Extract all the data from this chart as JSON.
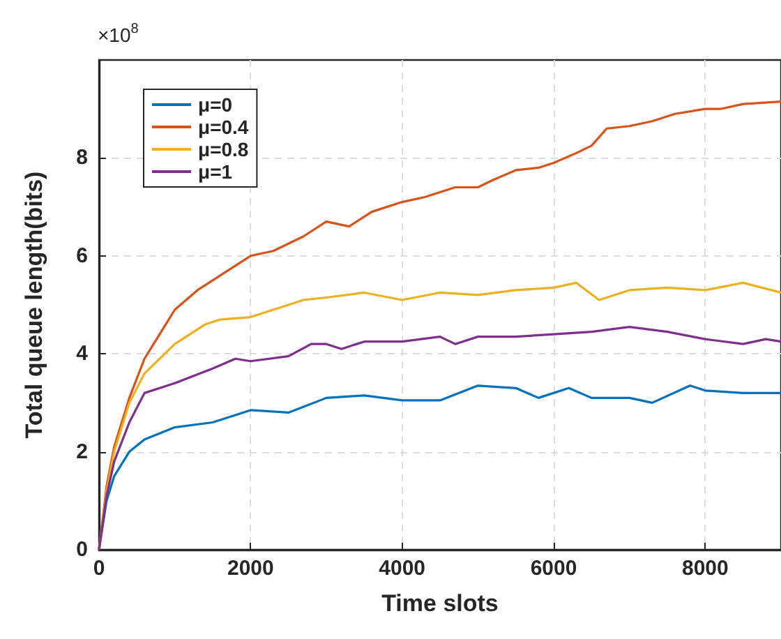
{
  "chart_data": {
    "type": "line",
    "xlabel": "Time slots",
    "ylabel": "Total queue length(bits)",
    "annotations": [
      "×10$^{8}$"
    ],
    "xlim": [
      0,
      9000
    ],
    "xticks": [
      0,
      2000,
      4000,
      6000,
      8000
    ],
    "ylim": [
      0,
      10
    ],
    "yticks": [
      0,
      2,
      4,
      6,
      8
    ],
    "grid": true,
    "legend": "top left",
    "marker": "none",
    "line_style": "solid",
    "series": [
      {
        "name": "μ=0",
        "color": "#0072bd",
        "x": [
          0,
          100,
          200,
          400,
          600,
          1000,
          1500,
          2000,
          2500,
          3000,
          3500,
          4000,
          4500,
          5000,
          5500,
          5800,
          6200,
          6500,
          7000,
          7300,
          7800,
          8000,
          8500,
          9000
        ],
        "values": [
          0,
          1.0,
          1.5,
          2.0,
          2.25,
          2.5,
          2.6,
          2.85,
          2.8,
          3.1,
          3.15,
          3.05,
          3.05,
          3.35,
          3.3,
          3.1,
          3.3,
          3.1,
          3.1,
          3.0,
          3.35,
          3.25,
          3.2,
          3.2
        ]
      },
      {
        "name": "μ=0.4",
        "color": "#d95319",
        "x": [
          0,
          100,
          200,
          400,
          600,
          800,
          1000,
          1300,
          1600,
          2000,
          2300,
          2700,
          3000,
          3300,
          3600,
          4000,
          4300,
          4700,
          5000,
          5200,
          5500,
          5800,
          6000,
          6300,
          6500,
          6700,
          7000,
          7300,
          7600,
          8000,
          8200,
          8500,
          9000
        ],
        "values": [
          0,
          1.3,
          2.1,
          3.1,
          3.9,
          4.4,
          4.9,
          5.3,
          5.6,
          6.0,
          6.1,
          6.4,
          6.7,
          6.6,
          6.9,
          7.1,
          7.2,
          7.4,
          7.4,
          7.55,
          7.75,
          7.8,
          7.9,
          8.1,
          8.25,
          8.6,
          8.65,
          8.75,
          8.9,
          9.0,
          9.0,
          9.1,
          9.15
        ]
      },
      {
        "name": "μ=0.8",
        "color": "#edb120",
        "x": [
          0,
          100,
          200,
          400,
          600,
          1000,
          1400,
          1600,
          2000,
          2500,
          2700,
          3000,
          3500,
          4000,
          4500,
          5000,
          5500,
          6000,
          6300,
          6600,
          7000,
          7500,
          8000,
          8500,
          9000
        ],
        "values": [
          0,
          1.2,
          2.0,
          3.0,
          3.6,
          4.2,
          4.6,
          4.7,
          4.75,
          5.0,
          5.1,
          5.15,
          5.25,
          5.1,
          5.25,
          5.2,
          5.3,
          5.35,
          5.45,
          5.1,
          5.3,
          5.35,
          5.3,
          5.45,
          5.25
        ]
      },
      {
        "name": "μ=1",
        "color": "#7e2f8e",
        "x": [
          0,
          100,
          200,
          400,
          600,
          1000,
          1500,
          1800,
          2000,
          2500,
          2800,
          3000,
          3200,
          3500,
          4000,
          4500,
          4700,
          5000,
          5500,
          6000,
          6500,
          7000,
          7500,
          8000,
          8500,
          8800,
          9000
        ],
        "values": [
          0,
          1.1,
          1.8,
          2.6,
          3.2,
          3.4,
          3.7,
          3.9,
          3.85,
          3.95,
          4.2,
          4.2,
          4.1,
          4.25,
          4.25,
          4.35,
          4.2,
          4.35,
          4.35,
          4.4,
          4.45,
          4.55,
          4.45,
          4.3,
          4.2,
          4.3,
          4.25
        ]
      }
    ]
  }
}
